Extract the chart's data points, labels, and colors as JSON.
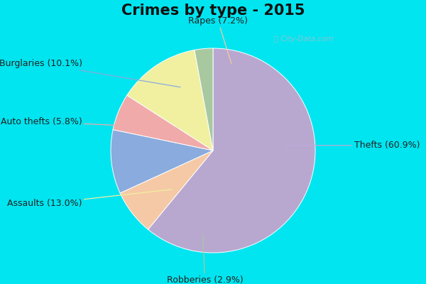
{
  "title": "Crimes by type - 2015",
  "title_fontsize": 15,
  "title_fontweight": "bold",
  "slices": [
    {
      "label": "Thefts (60.9%)",
      "value": 60.9,
      "color": "#b8a8d0"
    },
    {
      "label": "Rapes (7.2%)",
      "value": 7.2,
      "color": "#f5c9a5"
    },
    {
      "label": "Burglaries (10.1%)",
      "value": 10.1,
      "color": "#8aabdd"
    },
    {
      "label": "Auto thefts (5.8%)",
      "value": 5.8,
      "color": "#f0aaaa"
    },
    {
      "label": "Assaults (13.0%)",
      "value": 13.0,
      "color": "#f0f0a0"
    },
    {
      "label": "Robberies (2.9%)",
      "value": 2.9,
      "color": "#a8c8a0"
    }
  ],
  "border_color": "#00e5f0",
  "bg_color": "#e0f5ec",
  "label_fontsize": 9,
  "startangle": 90,
  "figsize": [
    6.0,
    4.0
  ],
  "dpi": 100,
  "border_width": 8
}
